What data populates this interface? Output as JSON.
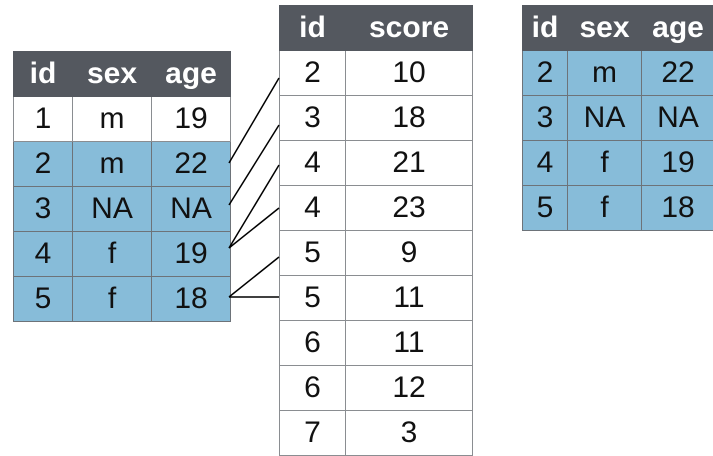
{
  "left_table": {
    "columns": [
      "id",
      "sex",
      "age"
    ],
    "rows": [
      {
        "cells": [
          "1",
          "m",
          "19"
        ],
        "highlighted": false
      },
      {
        "cells": [
          "2",
          "m",
          "22"
        ],
        "highlighted": true
      },
      {
        "cells": [
          "3",
          "NA",
          "NA"
        ],
        "highlighted": true
      },
      {
        "cells": [
          "4",
          "f",
          "19"
        ],
        "highlighted": true
      },
      {
        "cells": [
          "5",
          "f",
          "18"
        ],
        "highlighted": true
      }
    ]
  },
  "middle_table": {
    "columns": [
      "id",
      "score"
    ],
    "rows": [
      [
        "2",
        "10"
      ],
      [
        "3",
        "18"
      ],
      [
        "4",
        "21"
      ],
      [
        "4",
        "23"
      ],
      [
        "5",
        "9"
      ],
      [
        "5",
        "11"
      ],
      [
        "6",
        "11"
      ],
      [
        "6",
        "12"
      ],
      [
        "7",
        "3"
      ]
    ]
  },
  "right_table": {
    "columns": [
      "id",
      "sex",
      "age"
    ],
    "rows": [
      [
        "2",
        "m",
        "22"
      ],
      [
        "3",
        "NA",
        "NA"
      ],
      [
        "4",
        "f",
        "19"
      ],
      [
        "5",
        "f",
        "18"
      ]
    ]
  },
  "colors": {
    "header": "#54585f",
    "highlight": "#87bcd9",
    "line": "#000000"
  }
}
